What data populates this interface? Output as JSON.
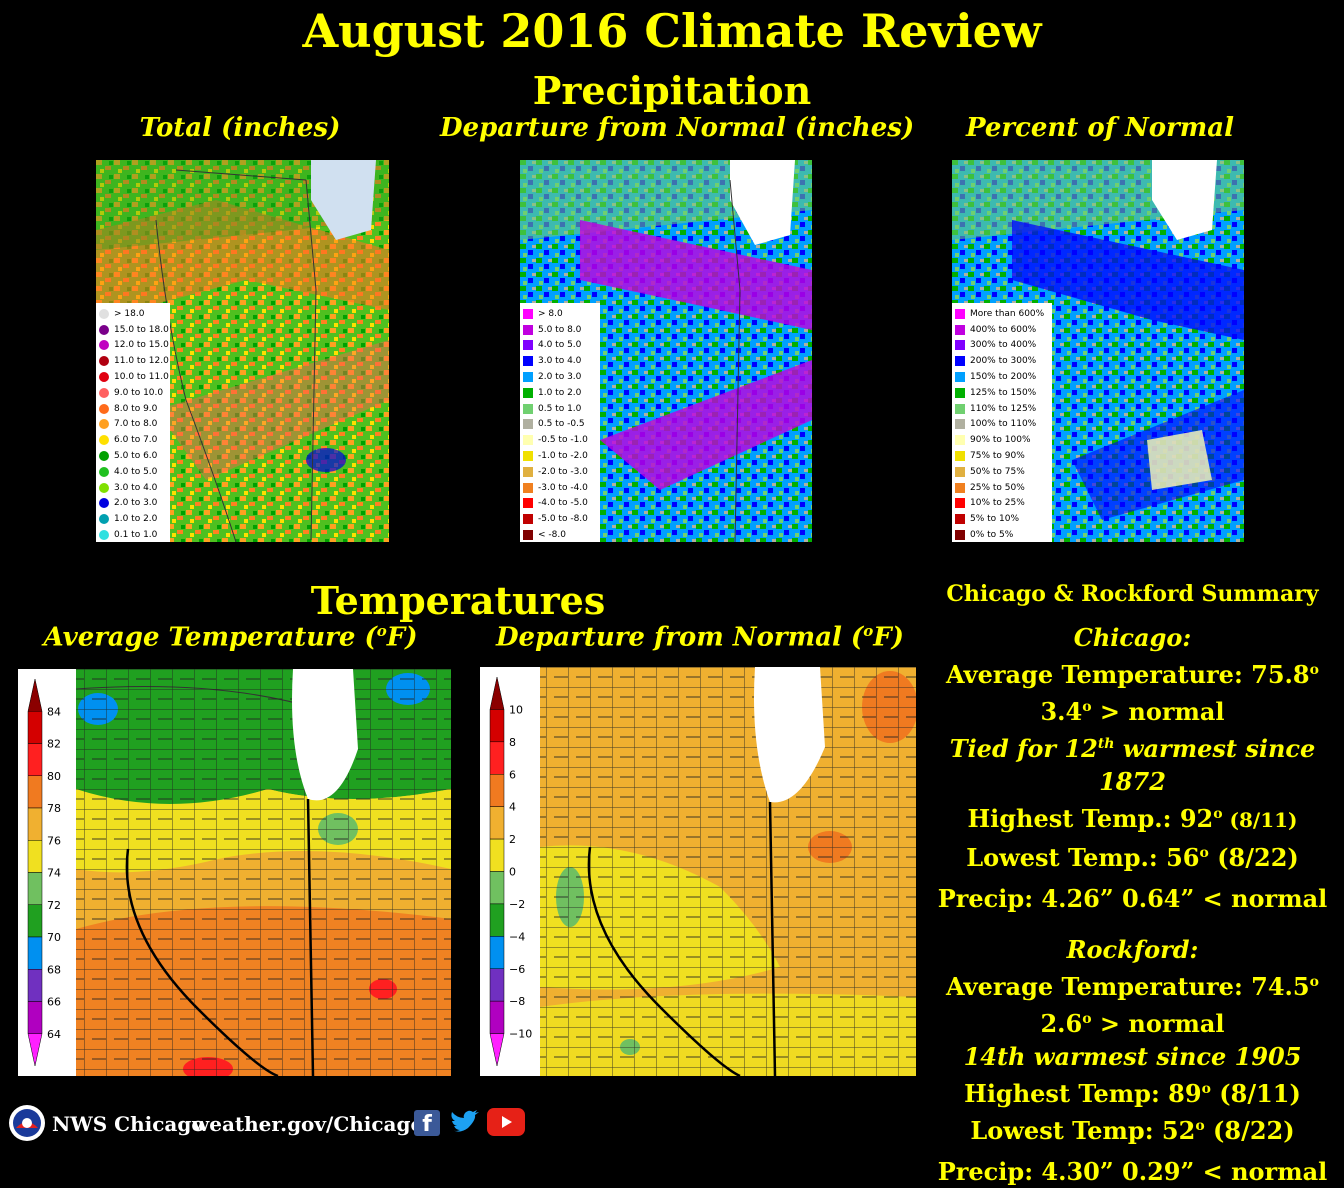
{
  "title": "August 2016 Climate Review",
  "precipitation": {
    "heading": "Precipitation",
    "total": {
      "title": "Total (inches)",
      "legend": [
        {
          "label": "> 18.0",
          "color": "#e0e0e0"
        },
        {
          "label": "15.0 to 18.0",
          "color": "#7a008a"
        },
        {
          "label": "12.0 to 15.0",
          "color": "#c000c0"
        },
        {
          "label": "11.0 to 12.0",
          "color": "#b00010"
        },
        {
          "label": "10.0 to 11.0",
          "color": "#e00010"
        },
        {
          "label": "9.0 to 10.0",
          "color": "#ff6060"
        },
        {
          "label": "8.0 to 9.0",
          "color": "#ff6a1a"
        },
        {
          "label": "7.0 to 8.0",
          "color": "#ffa020"
        },
        {
          "label": "6.0 to 7.0",
          "color": "#ffe000"
        },
        {
          "label": "5.0 to 6.0",
          "color": "#00a000"
        },
        {
          "label": "4.0 to 5.0",
          "color": "#20c020"
        },
        {
          "label": "3.0 to 4.0",
          "color": "#80e000"
        },
        {
          "label": "2.0 to 3.0",
          "color": "#0000e0"
        },
        {
          "label": "1.0 to 2.0",
          "color": "#00a0b0"
        },
        {
          "label": "0.1 to 1.0",
          "color": "#30e0e0"
        }
      ]
    },
    "departure": {
      "title": "Departure from Normal (inches)",
      "legend": [
        {
          "label": "> 8.0",
          "color": "#ff00ff"
        },
        {
          "label": "5.0 to 8.0",
          "color": "#c000e0"
        },
        {
          "label": "4.0 to 5.0",
          "color": "#8000ff"
        },
        {
          "label": "3.0 to 4.0",
          "color": "#0000ff"
        },
        {
          "label": "2.0 to 3.0",
          "color": "#00a0ff"
        },
        {
          "label": "1.0 to 2.0",
          "color": "#00b000"
        },
        {
          "label": "0.5 to 1.0",
          "color": "#70d070"
        },
        {
          "label": "0.5 to -0.5",
          "color": "#b0b0a0"
        },
        {
          "label": "-0.5 to -1.0",
          "color": "#ffffb0"
        },
        {
          "label": "-1.0 to -2.0",
          "color": "#f0e000"
        },
        {
          "label": "-2.0 to -3.0",
          "color": "#e0b040"
        },
        {
          "label": "-3.0 to -4.0",
          "color": "#f08020"
        },
        {
          "label": "-4.0 to -5.0",
          "color": "#ff0000"
        },
        {
          "label": "-5.0 to -8.0",
          "color": "#c00000"
        },
        {
          "label": "< -8.0",
          "color": "#800000"
        }
      ]
    },
    "percent": {
      "title": "Percent of Normal",
      "legend": [
        {
          "label": "More than 600%",
          "color": "#ff00ff"
        },
        {
          "label": "400% to 600%",
          "color": "#c000e0"
        },
        {
          "label": "300% to 400%",
          "color": "#8000ff"
        },
        {
          "label": "200% to 300%",
          "color": "#0000ff"
        },
        {
          "label": "150% to 200%",
          "color": "#00a0ff"
        },
        {
          "label": "125% to 150%",
          "color": "#00b000"
        },
        {
          "label": "110% to 125%",
          "color": "#70d070"
        },
        {
          "label": "100% to 110%",
          "color": "#b0b0a0"
        },
        {
          "label": "90% to 100%",
          "color": "#ffffb0"
        },
        {
          "label": "75% to 90%",
          "color": "#f0e000"
        },
        {
          "label": "50% to 75%",
          "color": "#e0b040"
        },
        {
          "label": "25% to 50%",
          "color": "#f08020"
        },
        {
          "label": "10% to 25%",
          "color": "#ff0000"
        },
        {
          "label": "5% to 10%",
          "color": "#c00000"
        },
        {
          "label": "0% to 5%",
          "color": "#800000"
        }
      ]
    }
  },
  "temperatures": {
    "heading": "Temperatures",
    "average": {
      "title_pre": "Average Temperature (",
      "title_sup": "o",
      "title_post": "F)",
      "ticks": [
        "84",
        "82",
        "80",
        "78",
        "76",
        "74",
        "72",
        "70",
        "68",
        "66",
        "64"
      ],
      "colors": [
        "#8b0000",
        "#d40000",
        "#ff2020",
        "#f07a20",
        "#f0b030",
        "#f0e020",
        "#70c060",
        "#20a020",
        "#0090f0",
        "#7030c0",
        "#b000c0",
        "#ff20ff"
      ]
    },
    "departure": {
      "title_pre": "Departure from Normal (",
      "title_sup": "o",
      "title_post": "F)",
      "ticks": [
        "10",
        "8",
        "6",
        "4",
        "2",
        "0",
        "−2",
        "−4",
        "−6",
        "−8",
        "−10"
      ],
      "colors": [
        "#8b0000",
        "#d40000",
        "#ff2020",
        "#f07a20",
        "#f0b030",
        "#f0e020",
        "#70c060",
        "#20a020",
        "#0090f0",
        "#7030c0",
        "#b000c0",
        "#ff20ff"
      ]
    }
  },
  "summary": {
    "heading": "Chicago & Rockford Summary",
    "chicago": {
      "name": "Chicago:",
      "avg_temp": "Average Temperature: 75.8",
      "deg": "o",
      "departure_val": "3.4",
      "departure_text": " > normal",
      "rank_pre": "Tied for 12",
      "rank_sup": "th",
      "rank_post": " warmest since 1872",
      "high_label": "Highest Temp.: 92",
      "high_date": " (8/11)",
      "low_label": "Lowest Temp.: 56",
      "low_date": " (8/22)",
      "precip": "Precip: 4.26”   0.64” < normal"
    },
    "rockford": {
      "name": "Rockford:",
      "avg_temp": "Average Temperature: 74.5",
      "deg": "o",
      "departure_val": "2.6",
      "departure_text": " > normal",
      "rank": "14th warmest since 1905",
      "high_label": "Highest Temp: 89",
      "high_date": " (8/11)",
      "low_label": "Lowest Temp: 52",
      "low_date": " (8/22)",
      "precip": "Precip: 4.30”  0.29” < normal"
    }
  },
  "footer": {
    "office": "NWS Chicago",
    "url": "weather.gov/Chicago",
    "icons": [
      "noaa-logo",
      "facebook-icon",
      "twitter-icon",
      "youtube-icon"
    ]
  }
}
